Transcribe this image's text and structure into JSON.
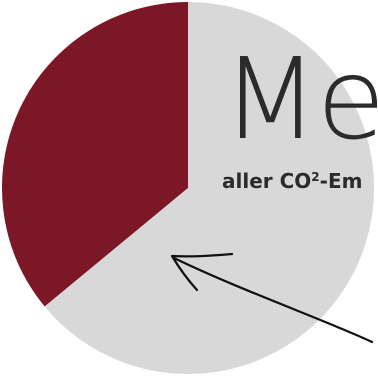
{
  "colors": {
    "slice_primary": "#7b1726",
    "slice_rest": "#d8d8d8",
    "text": "#2b2b2b",
    "arrow": "#111111",
    "background": "#ffffff"
  },
  "annotation": {
    "headline": "Me",
    "subline_prefix": "aller CO",
    "subline_sup": "2",
    "subline_suffix": "-Em"
  },
  "chart_data": {
    "type": "pie",
    "title": "",
    "start_angle_deg": 0,
    "direction": "counterclockwise",
    "slices": [
      {
        "label": "",
        "value": 36,
        "color": "#7b1726"
      },
      {
        "label": "",
        "value": 64,
        "color": "#d8d8d8"
      }
    ],
    "legend": "none",
    "data_labels": "none"
  }
}
